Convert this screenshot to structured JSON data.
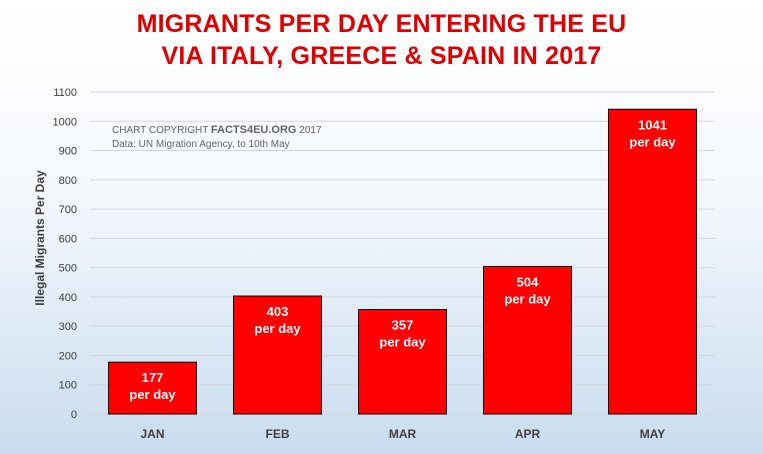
{
  "chart_data": {
    "type": "bar",
    "title": "MIGRANTS PER DAY ENTERING THE EU",
    "subtitle": "VIA ITALY, GREECE & SPAIN IN 2017",
    "xlabel": "",
    "ylabel": "Illegal Migrants Per Day",
    "categories": [
      "JAN",
      "FEB",
      "MAR",
      "APR",
      "MAY"
    ],
    "values": [
      177,
      403,
      357,
      504,
      1041
    ],
    "data_labels": [
      "177",
      "403",
      "357",
      "504",
      "1041"
    ],
    "data_label_suffix": "per day",
    "ylim": [
      0,
      1100
    ],
    "yticks": [
      0,
      100,
      200,
      300,
      400,
      500,
      600,
      700,
      800,
      900,
      1000,
      1100
    ],
    "grid": true,
    "bar_color": "#ff0000",
    "title_color": "#e00000",
    "annotations": {
      "copyright_prefix": "CHART COPYRIGHT ",
      "copyright_brand": "FACTS4EU.ORG",
      "copyright_year": " 2017",
      "source": "Data: UN Migration Agency, to 10th May"
    }
  }
}
